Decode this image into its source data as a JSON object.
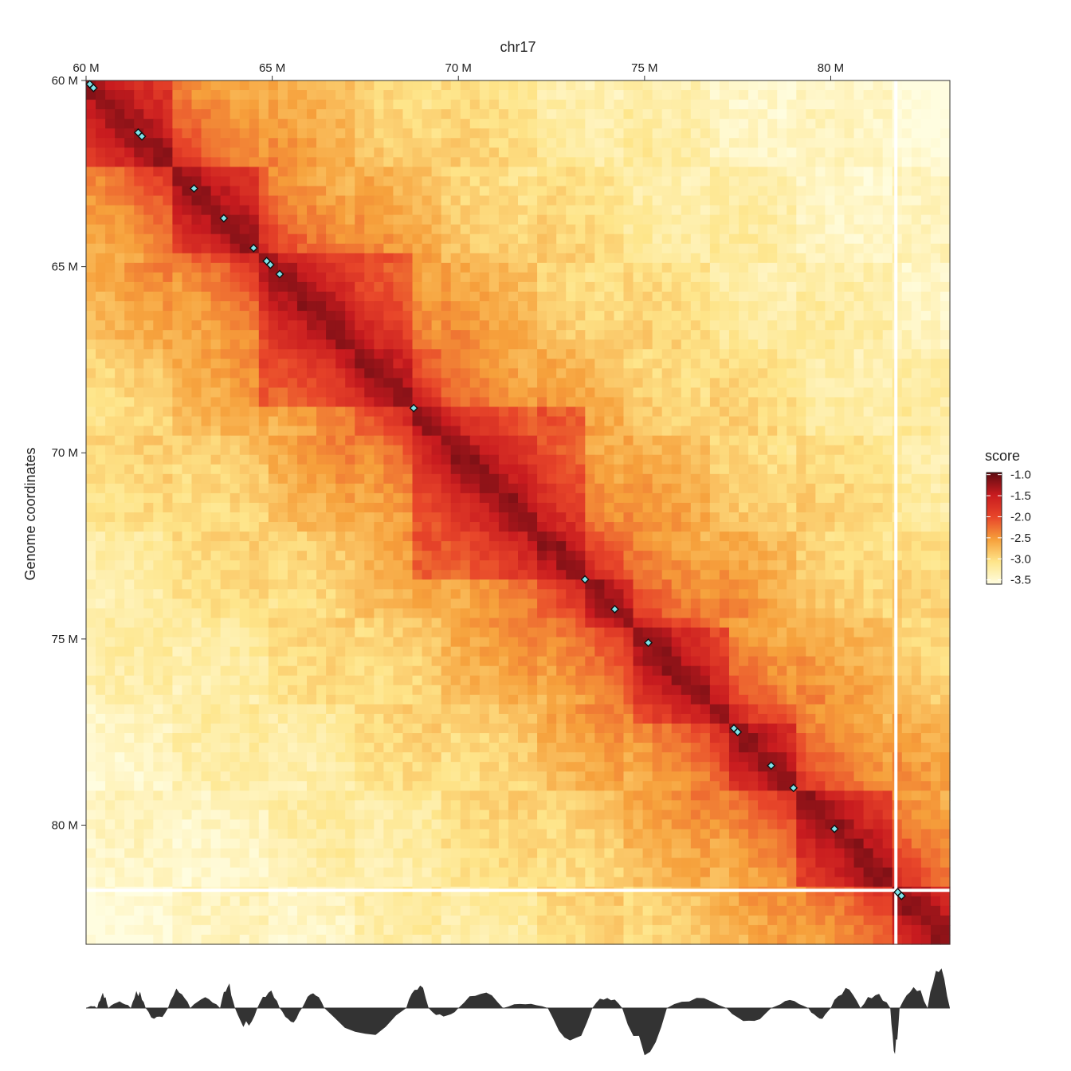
{
  "chart_data": {
    "type": "heatmap",
    "title": "chr17",
    "xlabel": "chr17",
    "ylabel": "Genome coordinates",
    "range_mb": [
      60.0,
      83.2
    ],
    "x_ticks": [
      {
        "value": 60,
        "label": "60 M"
      },
      {
        "value": 65,
        "label": "65 M"
      },
      {
        "value": 70,
        "label": "70 M"
      },
      {
        "value": 75,
        "label": "75 M"
      },
      {
        "value": 80,
        "label": "80 M"
      }
    ],
    "y_ticks": [
      {
        "value": 60,
        "label": "60 M"
      },
      {
        "value": 65,
        "label": "65 M"
      },
      {
        "value": 70,
        "label": "70 M"
      },
      {
        "value": 75,
        "label": "75 M"
      },
      {
        "value": 80,
        "label": "80 M"
      }
    ],
    "legend": {
      "title": "score",
      "position": "right",
      "min": -3.6,
      "max": -0.95,
      "ticks": [
        {
          "value": -1.0,
          "label": "-1.0"
        },
        {
          "value": -1.5,
          "label": "-1.5"
        },
        {
          "value": -2.0,
          "label": "-2.0"
        },
        {
          "value": -2.5,
          "label": "-2.5"
        },
        {
          "value": -3.0,
          "label": "-3.0"
        },
        {
          "value": -3.5,
          "label": "-3.5"
        }
      ],
      "colors": [
        "#fffde0",
        "#fee58a",
        "#f6a03b",
        "#e8462a",
        "#c81b1f",
        "#5e0c12"
      ]
    },
    "domains_mb": [
      [
        60.0,
        62.2
      ],
      [
        62.2,
        64.6
      ],
      [
        64.6,
        68.8
      ],
      [
        68.8,
        73.4
      ],
      [
        73.4,
        74.8
      ],
      [
        74.8,
        77.4
      ],
      [
        77.4,
        79.0
      ],
      [
        79.0,
        81.7
      ],
      [
        81.7,
        83.2
      ]
    ],
    "masked_bin_mb": 81.75,
    "loops_mb": [
      60.1,
      60.2,
      61.4,
      61.5,
      62.9,
      63.7,
      64.5,
      64.85,
      64.95,
      65.2,
      68.8,
      73.4,
      74.2,
      75.1,
      77.4,
      77.5,
      78.4,
      79.0,
      80.1,
      81.8,
      81.9
    ],
    "track": {
      "type": "area",
      "description": "signal track below heatmap",
      "segments": [
        {
          "start": 60.0,
          "end": 60.3,
          "value": 0.05
        },
        {
          "start": 60.3,
          "end": 60.6,
          "value": 0.3
        },
        {
          "start": 60.6,
          "end": 61.2,
          "value": 0.15
        },
        {
          "start": 61.2,
          "end": 61.6,
          "value": 0.35
        },
        {
          "start": 61.6,
          "end": 62.2,
          "value": -0.25
        },
        {
          "start": 62.2,
          "end": 62.8,
          "value": 0.4
        },
        {
          "start": 62.8,
          "end": 63.6,
          "value": 0.2
        },
        {
          "start": 63.6,
          "end": 64.0,
          "value": 0.5
        },
        {
          "start": 64.0,
          "end": 64.6,
          "value": -0.4
        },
        {
          "start": 64.6,
          "end": 65.2,
          "value": 0.35
        },
        {
          "start": 65.2,
          "end": 65.8,
          "value": -0.3
        },
        {
          "start": 65.8,
          "end": 66.4,
          "value": 0.3
        },
        {
          "start": 66.4,
          "end": 68.6,
          "value": -0.55
        },
        {
          "start": 68.6,
          "end": 69.2,
          "value": 0.55
        },
        {
          "start": 69.2,
          "end": 70.0,
          "value": -0.2
        },
        {
          "start": 70.0,
          "end": 71.2,
          "value": 0.35
        },
        {
          "start": 71.2,
          "end": 72.4,
          "value": 0.1
        },
        {
          "start": 72.4,
          "end": 73.6,
          "value": -0.75
        },
        {
          "start": 73.6,
          "end": 74.4,
          "value": 0.25
        },
        {
          "start": 74.4,
          "end": 75.6,
          "value": -0.9
        },
        {
          "start": 75.6,
          "end": 77.2,
          "value": 0.2
        },
        {
          "start": 77.2,
          "end": 78.4,
          "value": -0.3
        },
        {
          "start": 78.4,
          "end": 79.4,
          "value": 0.15
        },
        {
          "start": 79.4,
          "end": 80.0,
          "value": -0.25
        },
        {
          "start": 80.0,
          "end": 80.8,
          "value": 0.4
        },
        {
          "start": 80.8,
          "end": 81.6,
          "value": 0.3
        },
        {
          "start": 81.6,
          "end": 81.85,
          "value": -0.85
        },
        {
          "start": 81.85,
          "end": 82.6,
          "value": 0.5
        },
        {
          "start": 82.6,
          "end": 83.2,
          "value": 0.8
        }
      ]
    }
  }
}
